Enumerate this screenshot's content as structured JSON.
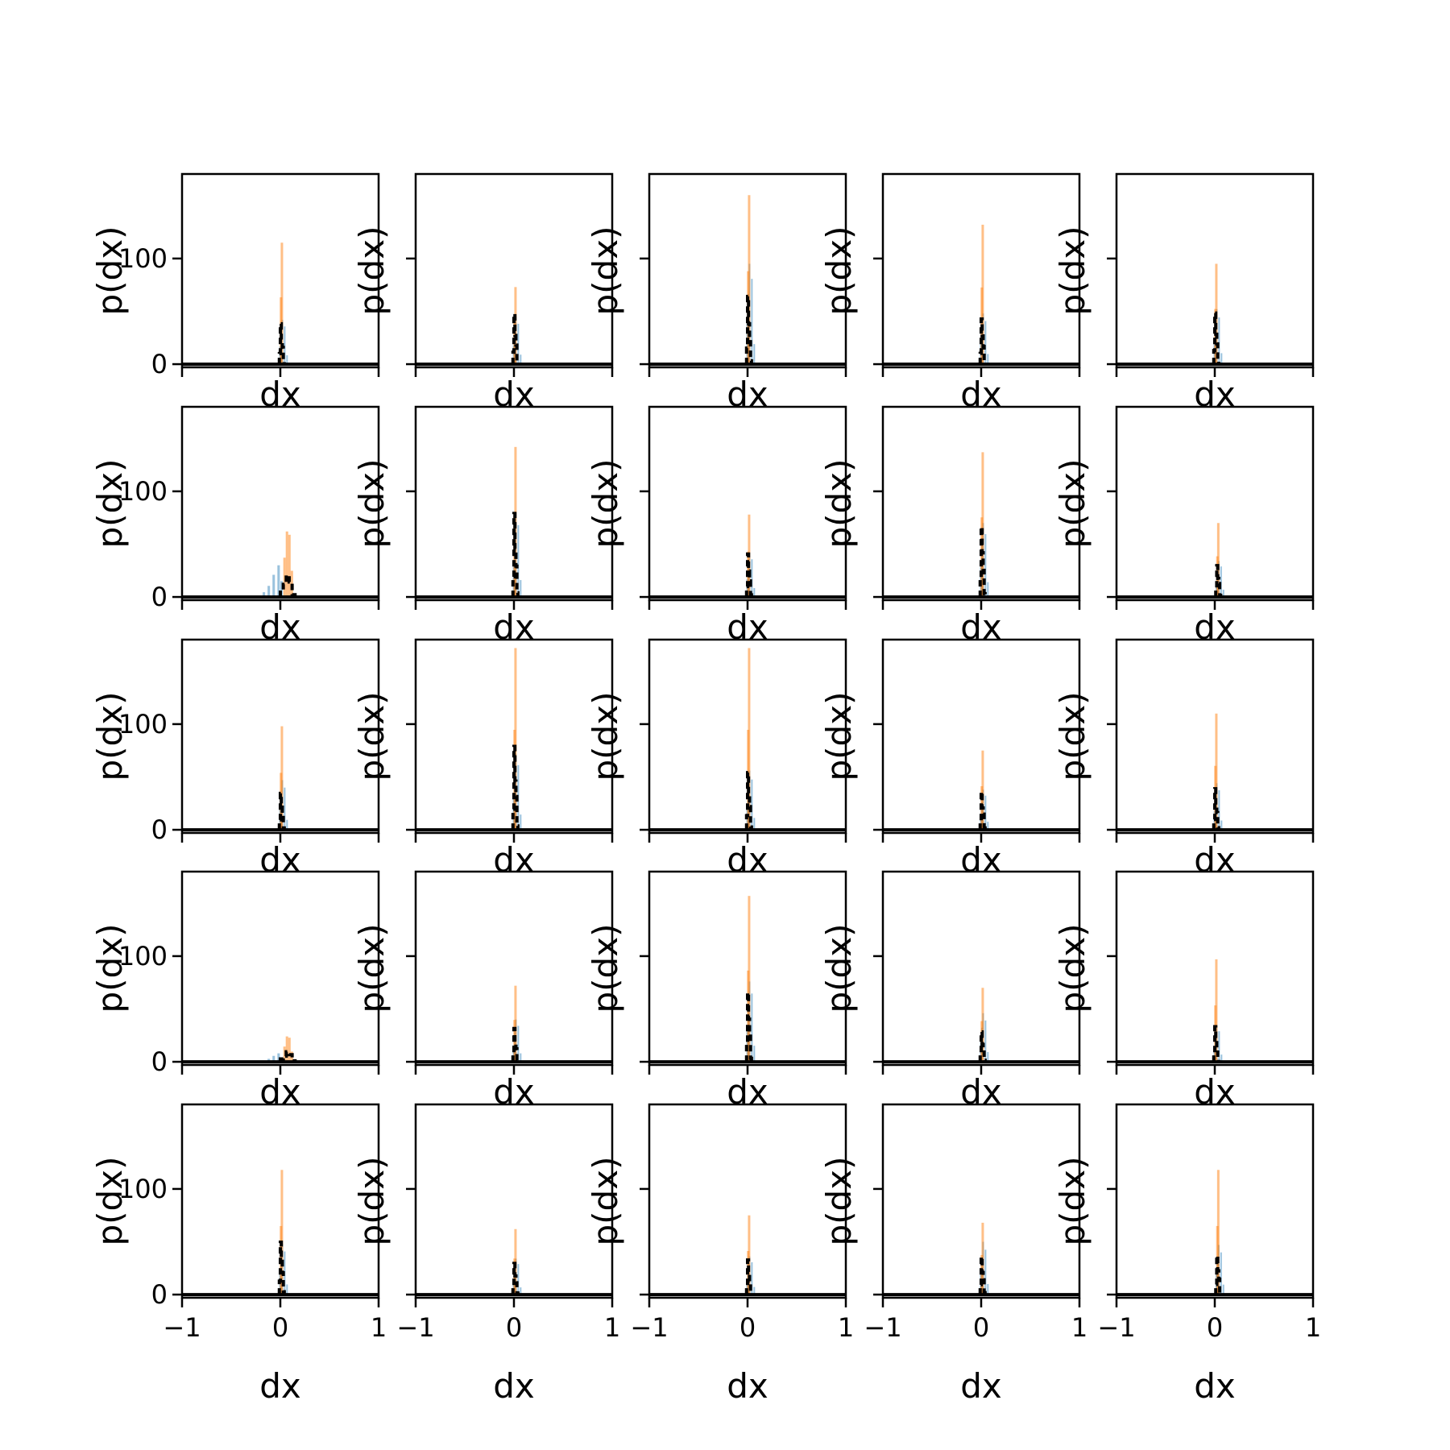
{
  "figure": {
    "background": "#ffffff"
  },
  "colors": {
    "blue": "#1f77b4",
    "orange": "#ff7f0e",
    "black": "#000000"
  },
  "chart_data": {
    "type": "bar",
    "layout": "5x5 grid of histograms with shared axes",
    "xlabel": "dx",
    "ylabel": "p(dx)",
    "xlim": [
      -1,
      1
    ],
    "ylim": [
      -3,
      180
    ],
    "x_ticks": [
      -1,
      0,
      1
    ],
    "x_tick_labels": [
      "−1",
      "0",
      "1"
    ],
    "y_ticks": [
      0,
      100
    ],
    "y_tick_labels": [
      "0",
      "100"
    ],
    "grid": false,
    "series_styles": [
      {
        "key": "blue",
        "kind": "filled bars",
        "color": "#1f77b4",
        "opacity": 0.45
      },
      {
        "key": "orange",
        "kind": "filled bars",
        "color": "#ff7f0e",
        "opacity": 0.5
      },
      {
        "key": "black",
        "kind": "dashed step line",
        "color": "#000000"
      }
    ],
    "panels": [
      {
        "row": 0,
        "col": 0,
        "orange_peak": 115,
        "blue_peak": 42,
        "black_peak": 42,
        "shift": 0.0
      },
      {
        "row": 0,
        "col": 1,
        "orange_peak": 73,
        "blue_peak": 45,
        "black_peak": 48,
        "shift": 0.0
      },
      {
        "row": 0,
        "col": 2,
        "orange_peak": 160,
        "blue_peak": 95,
        "black_peak": 66,
        "shift": 0.0
      },
      {
        "row": 0,
        "col": 3,
        "orange_peak": 132,
        "blue_peak": 48,
        "black_peak": 45,
        "shift": 0.0
      },
      {
        "row": 0,
        "col": 4,
        "orange_peak": 95,
        "blue_peak": 52,
        "black_peak": 52,
        "shift": 0.0
      },
      {
        "row": 1,
        "col": 0,
        "orange_peak": 62,
        "blue_peak": 30,
        "black_peak": 22,
        "shift": 0.02,
        "wide": true
      },
      {
        "row": 1,
        "col": 1,
        "orange_peak": 142,
        "blue_peak": 80,
        "black_peak": 80,
        "shift": 0.0
      },
      {
        "row": 1,
        "col": 2,
        "orange_peak": 78,
        "blue_peak": 42,
        "black_peak": 42,
        "shift": 0.0
      },
      {
        "row": 1,
        "col": 3,
        "orange_peak": 137,
        "blue_peak": 70,
        "black_peak": 70,
        "shift": 0.0
      },
      {
        "row": 1,
        "col": 4,
        "orange_peak": 70,
        "blue_peak": 34,
        "black_peak": 32,
        "shift": 0.02
      },
      {
        "row": 2,
        "col": 0,
        "orange_peak": 98,
        "blue_peak": 47,
        "black_peak": 38,
        "shift": 0.0
      },
      {
        "row": 2,
        "col": 1,
        "orange_peak": 172,
        "blue_peak": 72,
        "black_peak": 80,
        "shift": 0.0
      },
      {
        "row": 2,
        "col": 2,
        "orange_peak": 172,
        "blue_peak": 56,
        "black_peak": 56,
        "shift": 0.0
      },
      {
        "row": 2,
        "col": 3,
        "orange_peak": 75,
        "blue_peak": 38,
        "black_peak": 38,
        "shift": 0.0
      },
      {
        "row": 2,
        "col": 4,
        "orange_peak": 110,
        "blue_peak": 44,
        "black_peak": 42,
        "shift": 0.0
      },
      {
        "row": 3,
        "col": 0,
        "orange_peak": 24,
        "blue_peak": 8,
        "black_peak": 10,
        "shift": 0.06,
        "wide": true
      },
      {
        "row": 3,
        "col": 1,
        "orange_peak": 72,
        "blue_peak": 40,
        "black_peak": 32,
        "shift": 0.0
      },
      {
        "row": 3,
        "col": 2,
        "orange_peak": 157,
        "blue_peak": 76,
        "black_peak": 68,
        "shift": 0.0
      },
      {
        "row": 3,
        "col": 3,
        "orange_peak": 70,
        "blue_peak": 46,
        "black_peak": 30,
        "shift": 0.0
      },
      {
        "row": 3,
        "col": 4,
        "orange_peak": 97,
        "blue_peak": 34,
        "black_peak": 36,
        "shift": 0.0
      },
      {
        "row": 4,
        "col": 0,
        "orange_peak": 118,
        "blue_peak": 48,
        "black_peak": 55,
        "shift": 0.0
      },
      {
        "row": 4,
        "col": 1,
        "orange_peak": 62,
        "blue_peak": 34,
        "black_peak": 30,
        "shift": 0.0
      },
      {
        "row": 4,
        "col": 2,
        "orange_peak": 75,
        "blue_peak": 36,
        "black_peak": 34,
        "shift": 0.0
      },
      {
        "row": 4,
        "col": 3,
        "orange_peak": 68,
        "blue_peak": 50,
        "black_peak": 38,
        "shift": 0.0
      },
      {
        "row": 4,
        "col": 4,
        "orange_peak": 118,
        "blue_peak": 47,
        "black_peak": 40,
        "shift": 0.02
      }
    ]
  }
}
